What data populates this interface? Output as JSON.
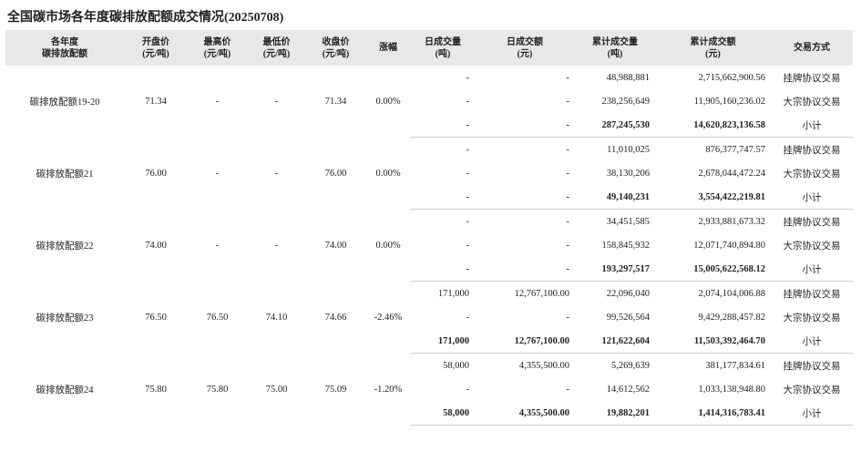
{
  "title": "全国碳市场各年度碳排放配额成交情况(20250708)",
  "table": {
    "header": [
      [
        "各年度",
        "碳排放配额"
      ],
      [
        "开盘价",
        "(元/吨)"
      ],
      [
        "最高价",
        "(元/吨)"
      ],
      [
        "最低价",
        "(元/吨)"
      ],
      [
        "收盘价",
        "(元/吨)"
      ],
      [
        "涨幅"
      ],
      [
        "日成交量",
        "(吨)"
      ],
      [
        "日成交额",
        "(元)"
      ],
      [
        "累计成交量",
        "(吨)"
      ],
      [
        "累计成交额",
        "(元)"
      ],
      [
        "交易方式"
      ]
    ],
    "groups": [
      {
        "name": "碳排放配额19-20",
        "open": "71.34",
        "high": "-",
        "low": "-",
        "close": "71.34",
        "change": "0.00%",
        "rows": [
          [
            "-",
            "-",
            "48,988,881",
            "2,715,662,900.56",
            "挂牌协议交易"
          ],
          [
            "-",
            "-",
            "238,256,649",
            "11,905,160,236.02",
            "大宗协议交易"
          ],
          [
            "-",
            "-",
            "287,245,530",
            "14,620,823,136.58",
            "小计"
          ]
        ]
      },
      {
        "name": "碳排放配额21",
        "open": "76.00",
        "high": "-",
        "low": "-",
        "close": "76.00",
        "change": "0.00%",
        "rows": [
          [
            "-",
            "-",
            "11,010,025",
            "876,377,747.57",
            "挂牌协议交易"
          ],
          [
            "-",
            "-",
            "38,130,206",
            "2,678,044,472.24",
            "大宗协议交易"
          ],
          [
            "-",
            "-",
            "49,140,231",
            "3,554,422,219.81",
            "小计"
          ]
        ]
      },
      {
        "name": "碳排放配额22",
        "open": "74.00",
        "high": "-",
        "low": "-",
        "close": "74.00",
        "change": "0.00%",
        "rows": [
          [
            "-",
            "-",
            "34,451,585",
            "2,933,881,673.32",
            "挂牌协议交易"
          ],
          [
            "-",
            "-",
            "158,845,932",
            "12,071,740,894.80",
            "大宗协议交易"
          ],
          [
            "-",
            "-",
            "193,297,517",
            "15,005,622,568.12",
            "小计"
          ]
        ]
      },
      {
        "name": "碳排放配额23",
        "open": "76.50",
        "high": "76.50",
        "low": "74.10",
        "close": "74.66",
        "change": "-2.46%",
        "rows": [
          [
            "171,000",
            "12,767,100.00",
            "22,096,040",
            "2,074,104,006.88",
            "挂牌协议交易"
          ],
          [
            "-",
            "-",
            "99,526,564",
            "9,429,288,457.82",
            "大宗协议交易"
          ],
          [
            "171,000",
            "12,767,100.00",
            "121,622,604",
            "11,503,392,464.70",
            "小计"
          ]
        ]
      },
      {
        "name": "碳排放配额24",
        "open": "75.80",
        "high": "75.80",
        "low": "75.00",
        "close": "75.09",
        "change": "-1.20%",
        "rows": [
          [
            "58,000",
            "4,355,500.00",
            "5,269,639",
            "381,177,834.61",
            "挂牌协议交易"
          ],
          [
            "-",
            "-",
            "14,612,562",
            "1,033,138,948.80",
            "大宗协议交易"
          ],
          [
            "58,000",
            "4,355,500.00",
            "19,882,201",
            "1,414,316,783.41",
            "小计"
          ]
        ]
      }
    ]
  }
}
